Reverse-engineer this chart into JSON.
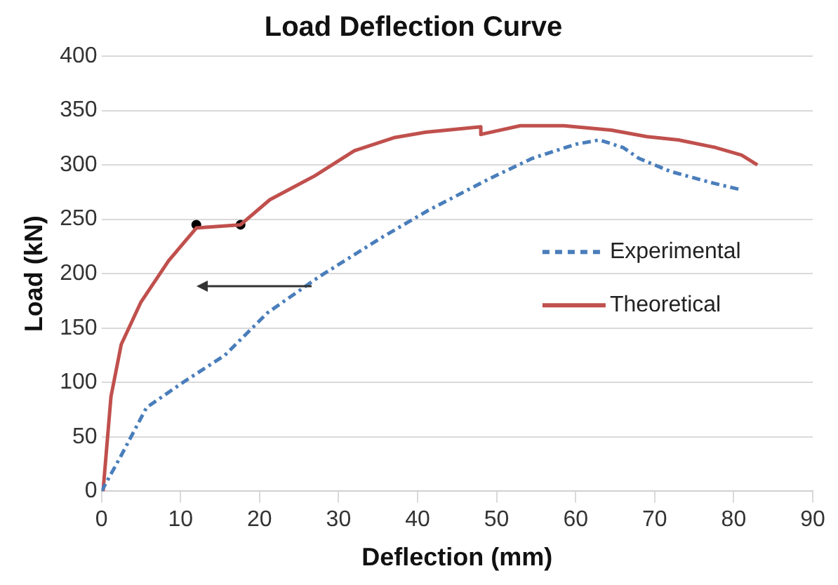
{
  "chart_data": {
    "type": "line",
    "title": "Load Deflection Curve",
    "xlabel": "Deflection (mm)",
    "ylabel": "Load (kN)",
    "xlim": [
      0,
      90
    ],
    "xticks": [
      0,
      10,
      20,
      30,
      40,
      50,
      60,
      70,
      80,
      90
    ],
    "ylim": [
      0,
      400
    ],
    "yticks": [
      0,
      50,
      100,
      150,
      200,
      250,
      300,
      350,
      400
    ],
    "grid": "y",
    "legend": "right",
    "marker": "none",
    "series": [
      {
        "name": "Experimental",
        "color": "#4a7ebb",
        "line_style": "dashed",
        "x": [
          0,
          2.5,
          5.7,
          10.5,
          15.6,
          21,
          27.5,
          35.4,
          41.3,
          49,
          54.5,
          60,
          63,
          66,
          68,
          72,
          77,
          81
        ],
        "values": [
          0,
          33,
          77,
          101,
          125,
          164,
          197,
          233,
          258,
          287,
          306,
          319,
          323,
          316,
          306,
          294,
          284,
          277
        ]
      },
      {
        "name": "Theoretical",
        "color": "#c0504d",
        "line_style": "solid",
        "x": [
          0.2,
          1.2,
          2.5,
          5,
          8.5,
          12,
          17.6,
          21.3,
          27,
          32,
          37,
          41,
          48,
          48,
          53,
          58.5,
          64.5,
          69,
          73,
          77.7,
          81,
          83
        ],
        "values": [
          0,
          87,
          135,
          174,
          212,
          242,
          245,
          268,
          290,
          313,
          325,
          330,
          335,
          328,
          336,
          336,
          332,
          326,
          323,
          316,
          309,
          300
        ]
      },
      {
        "type": "scatter",
        "color": "#000000",
        "marker": "circle",
        "x": [
          12,
          17.6
        ],
        "values": [
          245,
          245
        ]
      }
    ]
  }
}
